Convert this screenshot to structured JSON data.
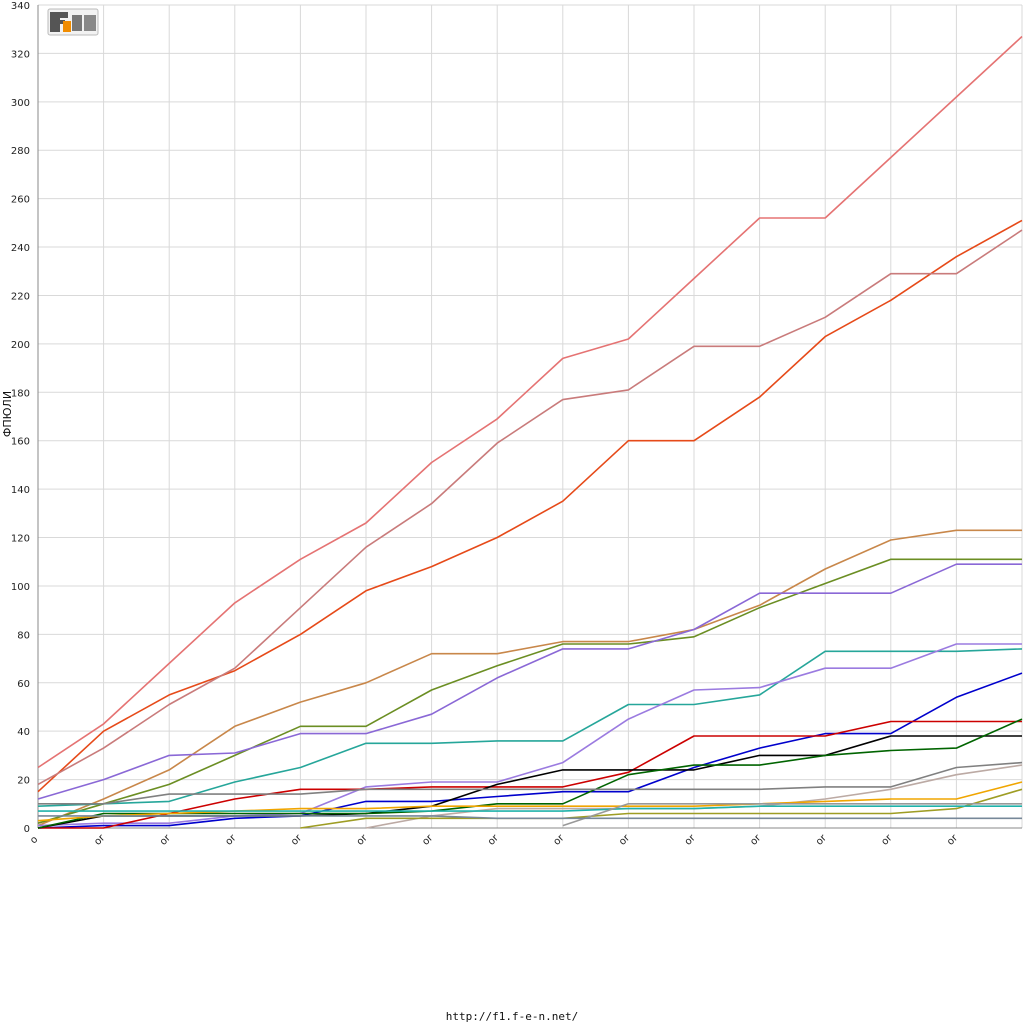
{
  "footer": {
    "url": "http://f1.f-e-n.net/"
  },
  "logo": {
    "name": "f1-e-n-logo",
    "text": "F1EN"
  },
  "chart_data": {
    "type": "line",
    "title": "",
    "xlabel": "",
    "ylabel": "ФПЮЛИ",
    "ylim": [
      0,
      340
    ],
    "yticks": [
      0,
      20,
      40,
      60,
      80,
      100,
      120,
      140,
      160,
      180,
      200,
      220,
      240,
      260,
      280,
      300,
      320,
      340
    ],
    "x": [
      0,
      1,
      2,
      3,
      4,
      5,
      6,
      7,
      8,
      9,
      10,
      11,
      12,
      13,
      14,
      15
    ],
    "xtick_labels": [
      "o",
      "or",
      "or",
      "or",
      "or",
      "or",
      "or",
      "or",
      "or",
      "or",
      "or",
      "or",
      "or",
      "or",
      "or",
      ""
    ],
    "grid": true,
    "legend": "none",
    "series": [
      {
        "color": "#e57373",
        "values": [
          25,
          43,
          68,
          93,
          111,
          126,
          151,
          169,
          194,
          202,
          227,
          252,
          252,
          277,
          302,
          327
        ]
      },
      {
        "color": "#e64a19",
        "values": [
          15,
          40,
          55,
          65,
          80,
          98,
          108,
          120,
          135,
          160,
          160,
          178,
          203,
          218,
          236,
          251
        ]
      },
      {
        "color": "#c97b7b",
        "values": [
          18,
          33,
          51,
          66,
          91,
          116,
          134,
          159,
          177,
          181,
          199,
          199,
          211,
          229,
          229,
          247
        ]
      },
      {
        "color": "#c8874a",
        "values": [
          1,
          12,
          24,
          42,
          52,
          60,
          72,
          72,
          77,
          77,
          82,
          92,
          107,
          119,
          123,
          123
        ]
      },
      {
        "color": "#6b8e23",
        "values": [
          2,
          10,
          18,
          30,
          42,
          42,
          57,
          67,
          76,
          76,
          79,
          91,
          101,
          111,
          111,
          111
        ]
      },
      {
        "color": "#8a68d6",
        "values": [
          12,
          20,
          30,
          31,
          39,
          39,
          47,
          62,
          74,
          74,
          82,
          97,
          97,
          97,
          109,
          109
        ]
      },
      {
        "color": "#26a69a",
        "values": [
          9,
          10,
          11,
          19,
          25,
          35,
          35,
          36,
          36,
          51,
          51,
          55,
          73,
          73,
          73,
          74
        ]
      },
      {
        "color": "#9b7be0",
        "values": [
          1,
          2,
          2,
          5,
          6,
          17,
          19,
          19,
          27,
          45,
          57,
          58,
          66,
          66,
          76,
          76
        ]
      },
      {
        "color": "#0000cc",
        "values": [
          0,
          1,
          1,
          4,
          5,
          11,
          11,
          13,
          15,
          15,
          25,
          33,
          39,
          39,
          54,
          64
        ]
      },
      {
        "color": "#cc0000",
        "values": [
          0,
          0,
          6,
          12,
          16,
          16,
          17,
          17,
          17,
          23,
          38,
          38,
          38,
          44,
          44,
          44
        ]
      },
      {
        "color": "#000000",
        "values": [
          0,
          5,
          5,
          5,
          5,
          6,
          9,
          18,
          24,
          24,
          24,
          30,
          30,
          38,
          38,
          38
        ]
      },
      {
        "color": "#006400",
        "values": [
          0,
          6,
          6,
          6,
          6,
          6,
          7,
          10,
          10,
          22,
          26,
          26,
          30,
          32,
          33,
          45
        ]
      },
      {
        "color": "#808080",
        "values": [
          10,
          10,
          14,
          14,
          14,
          16,
          16,
          16,
          16,
          16,
          16,
          16,
          17,
          17,
          25,
          27
        ]
      },
      {
        "color": "#bcaaa4",
        "values": [
          null,
          null,
          null,
          null,
          null,
          0,
          5,
          8,
          8,
          8,
          8,
          9,
          12,
          16,
          22,
          26
        ]
      },
      {
        "color": "#f0a500",
        "values": [
          3,
          5,
          6,
          7,
          8,
          8,
          9,
          9,
          9,
          9,
          9,
          10,
          11,
          12,
          12,
          19
        ]
      },
      {
        "color": "#9e9d24",
        "values": [
          null,
          null,
          null,
          null,
          0,
          4,
          4,
          4,
          4,
          6,
          6,
          6,
          6,
          6,
          8,
          16
        ]
      },
      {
        "color": "#20b2aa",
        "values": [
          7,
          7,
          7,
          7,
          7,
          7,
          7,
          7,
          7,
          8,
          8,
          9,
          9,
          9,
          9,
          9
        ]
      },
      {
        "color": "#999999",
        "values": [
          null,
          null,
          null,
          null,
          null,
          null,
          null,
          null,
          1,
          10,
          10,
          10,
          10,
          10,
          10,
          10
        ]
      },
      {
        "color": "#778899",
        "values": [
          5,
          5,
          5,
          5,
          5,
          5,
          5,
          4,
          4,
          4,
          4,
          4,
          4,
          4,
          4,
          4
        ]
      }
    ]
  }
}
